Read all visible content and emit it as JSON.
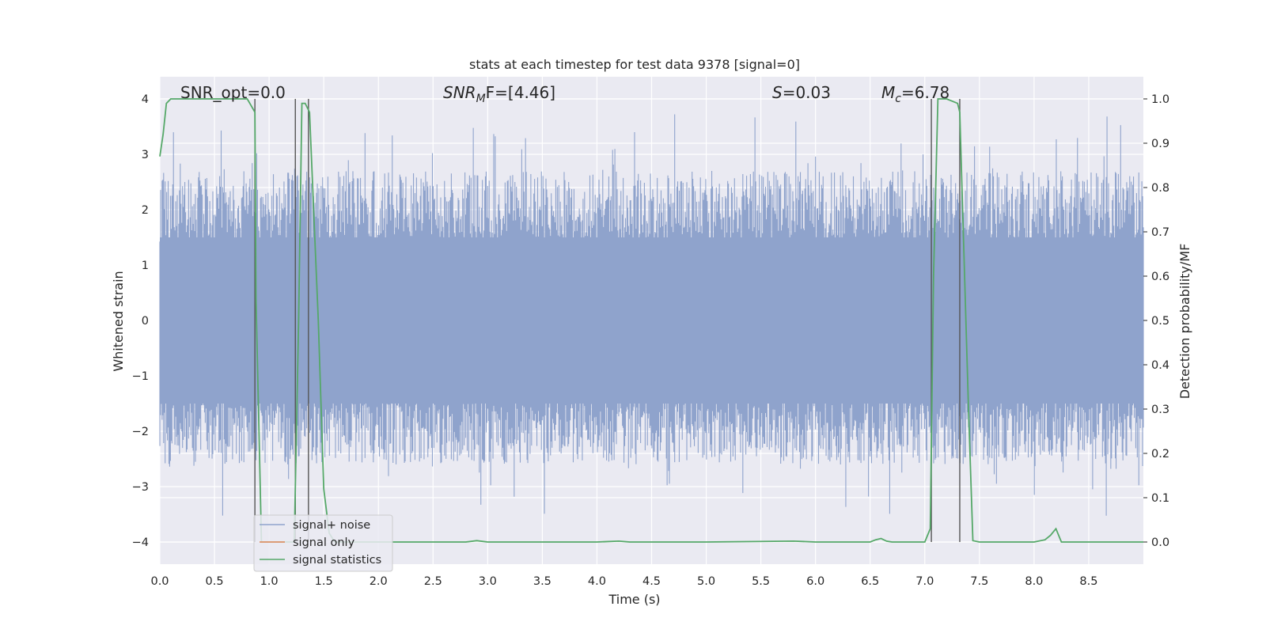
{
  "chart_data": {
    "type": "line",
    "title": "stats at each timestep for test data 9378 [signal=0]",
    "xlabel": "Time (s)",
    "ylabel_left": "Whitened strain",
    "ylabel_right": "Detection probability/MF",
    "xlim": [
      0,
      9.0
    ],
    "ylim_left": [
      -4.4,
      4.4
    ],
    "ylim_right": [
      -0.05,
      1.05
    ],
    "xticks": [
      "0.0",
      "0.5",
      "1.0",
      "1.5",
      "2.0",
      "2.5",
      "3.0",
      "3.5",
      "4.0",
      "4.5",
      "5.0",
      "5.5",
      "6.0",
      "6.5",
      "7.0",
      "7.5",
      "8.0",
      "8.5"
    ],
    "yticks_left": [
      "−4",
      "−3",
      "−2",
      "−1",
      "0",
      "1",
      "2",
      "3",
      "4"
    ],
    "yticks_right": [
      "0.0",
      "0.1",
      "0.2",
      "0.3",
      "0.4",
      "0.5",
      "0.6",
      "0.7",
      "0.8",
      "0.9",
      "1.0"
    ],
    "grid": true,
    "legend_position": "lower-left",
    "annotations": {
      "snr_opt": "SNR_opt=0.0",
      "snr_mf_main": "SNR",
      "snr_mf_sub": "M",
      "snr_mf_rest": "F=[4.46]",
      "s_main": "S",
      "s_rest": "=0.03",
      "mc_main": "M",
      "mc_sub": "c",
      "mc_rest": "=6.78"
    },
    "series": [
      {
        "name": "signal+ noise",
        "color": "#8fa3cc",
        "description_values": "whitened strain noise, approx. uniform band between -2.5 and 2.7 with spikes up to ~3.9 and down to ~-3.6"
      },
      {
        "name": "signal only",
        "color": "#dd8452",
        "x": [],
        "y": []
      },
      {
        "name": "signal statistics",
        "color": "#55a868",
        "x": [
          0.0,
          0.03,
          0.06,
          0.1,
          0.2,
          0.4,
          0.6,
          0.8,
          0.87,
          0.88,
          0.93,
          1.0,
          1.1,
          1.2,
          1.23,
          1.27,
          1.3,
          1.33,
          1.37,
          1.45,
          1.5,
          1.55,
          1.6,
          2.0,
          2.5,
          2.8,
          2.9,
          3.0,
          4.0,
          4.2,
          4.3,
          5.0,
          5.8,
          6.0,
          6.5,
          6.55,
          6.6,
          6.65,
          6.7,
          7.0,
          7.05,
          7.08,
          7.12,
          7.2,
          7.3,
          7.32,
          7.4,
          7.44,
          7.5,
          8.0,
          8.1,
          8.15,
          8.2,
          8.25,
          8.5,
          9.0
        ],
        "y": [
          0.87,
          0.92,
          0.99,
          1.0,
          1.0,
          1.0,
          1.0,
          1.0,
          0.97,
          0.55,
          0.0,
          0.0,
          0.0,
          0.0,
          0.0,
          0.5,
          0.99,
          0.99,
          0.97,
          0.5,
          0.12,
          0.02,
          0.0,
          0.0,
          0.0,
          0.0,
          0.003,
          0.0,
          0.0,
          0.002,
          0.0,
          0.0,
          0.002,
          0.0,
          0.0,
          0.005,
          0.008,
          0.002,
          0.0,
          0.0,
          0.03,
          0.6,
          1.0,
          1.0,
          0.99,
          0.97,
          0.3,
          0.003,
          0.0,
          0.0,
          0.005,
          0.015,
          0.03,
          0.0,
          0.0,
          0.0
        ]
      }
    ],
    "vertical_markers_x": [
      0.87,
      1.24,
      1.36,
      7.06,
      7.32
    ]
  }
}
